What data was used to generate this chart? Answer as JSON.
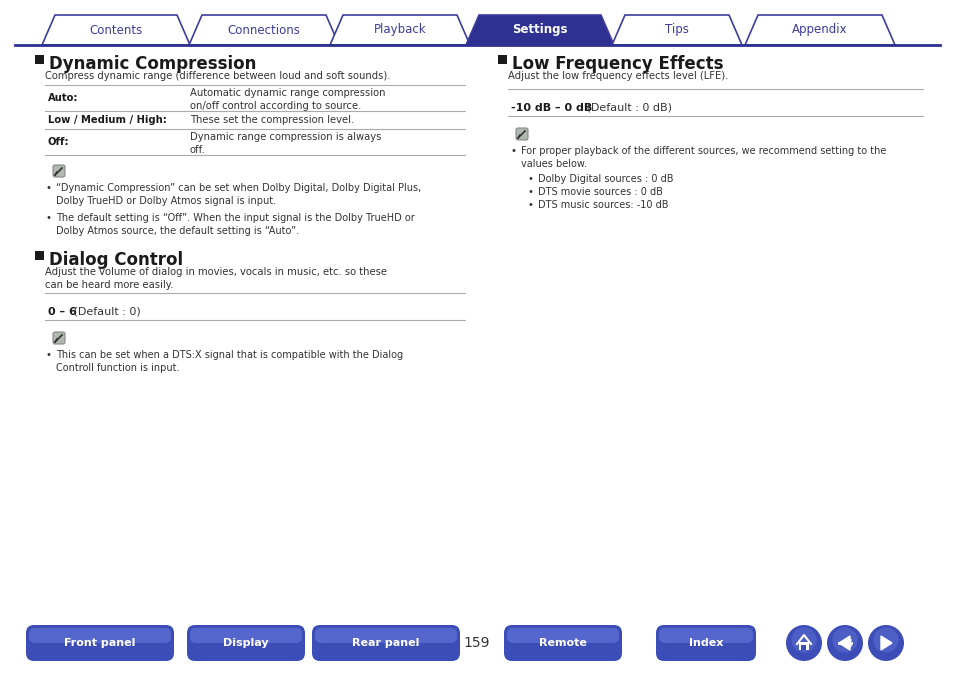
{
  "bg_color": "#ffffff",
  "top_tabs": [
    "Contents",
    "Connections",
    "Playback",
    "Settings",
    "Tips",
    "Appendix"
  ],
  "active_tab": "Settings",
  "tab_color_active": "#2e3192",
  "tab_color_inactive": "#ffffff",
  "tab_text_active": "#ffffff",
  "tab_text_inactive": "#3d3d9e",
  "tab_border_color": "#3d3d9e",
  "tab_line_color": "#2e3192",
  "section1_title": "Dynamic Compression",
  "section1_desc": "Compress dynamic range (difference between loud and soft sounds).",
  "dc_table": [
    {
      "label": "Auto:",
      "desc": "Automatic dynamic range compression\non/off control according to source."
    },
    {
      "label": "Low / Medium / High:",
      "desc": "These set the compression level."
    },
    {
      "label": "Off:",
      "desc": "Dynamic range compression is always\noff."
    }
  ],
  "dc_notes": [
    "“Dynamic Compression” can be set when Dolby Digital, Dolby Digital Plus,\nDolby TrueHD or Dolby Atmos signal is input.",
    "The default setting is “Off”. When the input signal is the Dolby TrueHD or\nDolby Atmos source, the default setting is “Auto”."
  ],
  "section2_title": "Dialog Control",
  "section2_desc": "Adjust the volume of dialog in movies, vocals in music, etc. so these\ncan be heard more easily.",
  "section2_range": "0 – 6",
  "section2_default": " (Default : 0)",
  "section2_notes": [
    "This can be set when a DTS:X signal that is compatible with the Dialog\nControll function is input."
  ],
  "section3_title": "Low Frequency Effects",
  "section3_desc": "Adjust the low frequency effects level (LFE).",
  "section3_range": "-10 dB – 0 dB",
  "section3_default": " (Default : 0 dB)",
  "section3_notes": [
    "For proper playback of the different sources, we recommend setting to the\nvalues below.",
    "Dolby Digital sources : 0 dB",
    "DTS movie sources : 0 dB",
    "DTS music sources: -10 dB"
  ],
  "bottom_buttons": [
    "Front panel",
    "Display",
    "Rear panel",
    "Remote",
    "Index"
  ],
  "page_number": "159",
  "button_color_main": "#3d4db7",
  "button_color_grad": "#5566cc",
  "title_color": "#1a1a1a",
  "text_color": "#333333",
  "bold_label_color": "#1a1a1a",
  "range_bold_color": "#1a1a1a",
  "section_sq_color": "#1a1a1a",
  "line_color": "#aaaaaa",
  "note_icon_bg": "#b0b8b0",
  "note_icon_border": "#888888"
}
